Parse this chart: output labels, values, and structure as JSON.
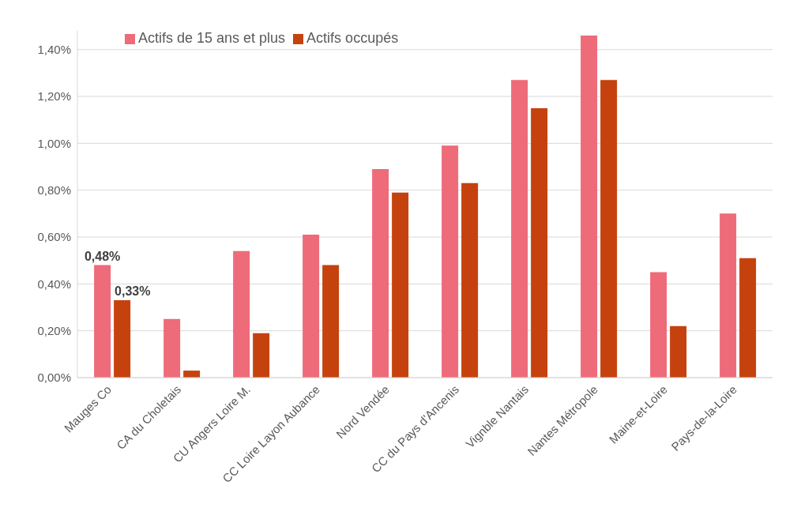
{
  "chart_data": {
    "type": "bar",
    "categories": [
      "Mauges Co",
      "CA du Choletais",
      "CU Angers Loire M.",
      "CC Loire Layon Aubance",
      "Nord Vendée",
      "CC du Pays d'Ancenis",
      "Vignble Nantais",
      "Nantes Métropole",
      "Maine-et-Loire",
      "Pays-de-la-Loire"
    ],
    "series": [
      {
        "name": "Actifs de 15 ans et plus",
        "color": "#ee6b7a",
        "values": [
          0.48,
          0.25,
          0.54,
          0.61,
          0.89,
          0.99,
          1.27,
          1.46,
          0.45,
          0.7
        ],
        "value_labels": [
          "0,48%",
          null,
          null,
          null,
          null,
          null,
          null,
          null,
          null,
          null
        ]
      },
      {
        "name": "Actifs occupés",
        "color": "#c5420f",
        "values": [
          0.33,
          0.03,
          0.19,
          0.48,
          0.79,
          0.83,
          1.15,
          1.27,
          0.22,
          0.51
        ],
        "value_labels": [
          "0,33%",
          null,
          null,
          null,
          null,
          null,
          null,
          null,
          null,
          null
        ]
      }
    ],
    "ylim": [
      0,
      1.48
    ],
    "yticks": [
      {
        "value": 0,
        "label": "0,00%"
      },
      {
        "value": 0.2,
        "label": "0,20%"
      },
      {
        "value": 0.4,
        "label": "0,40%"
      },
      {
        "value": 0.6,
        "label": "0,60%"
      },
      {
        "value": 0.8,
        "label": "0,80%"
      },
      {
        "value": 1.0,
        "label": "1,00%"
      },
      {
        "value": 1.2,
        "label": "1,20%"
      },
      {
        "value": 1.4,
        "label": "1,40%"
      }
    ],
    "grid": "y",
    "legend": "top left"
  }
}
